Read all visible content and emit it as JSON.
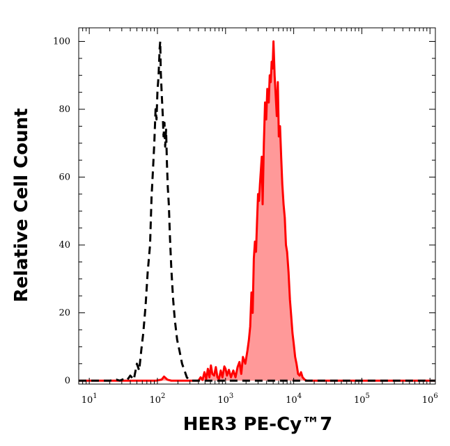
{
  "chart_data": {
    "type": "area",
    "title": "",
    "xlabel": "HER3 PE-Cy™7",
    "ylabel": "Relative Cell Count",
    "xscale": "log",
    "xlim": [
      7,
      1200000.0
    ],
    "ylim": [
      -1,
      104
    ],
    "grid": false,
    "legend": "none",
    "x_tick_labels": [
      {
        "base": "10",
        "exp": "1",
        "value": 10
      },
      {
        "base": "10",
        "exp": "2",
        "value": 100
      },
      {
        "base": "10",
        "exp": "3",
        "value": 1000
      },
      {
        "base": "10",
        "exp": "4",
        "value": 10000
      },
      {
        "base": "10",
        "exp": "5",
        "value": 100000
      },
      {
        "base": "10",
        "exp": "6",
        "value": 1000000
      }
    ],
    "y_ticks": [
      0,
      20,
      40,
      60,
      80,
      100
    ],
    "y_tick_labels": [
      "0",
      "20",
      "40",
      "60",
      "80",
      "100"
    ],
    "series": [
      {
        "style": "dashed",
        "color": "#000000",
        "fill": "none",
        "points": [
          [
            7,
            0
          ],
          [
            20,
            0
          ],
          [
            25,
            0.3
          ],
          [
            28,
            0
          ],
          [
            33,
            0.6
          ],
          [
            36,
            0.2
          ],
          [
            40,
            1.5
          ],
          [
            45,
            0.3
          ],
          [
            50,
            5
          ],
          [
            54,
            3
          ],
          [
            58,
            9
          ],
          [
            62,
            14
          ],
          [
            67,
            22
          ],
          [
            72,
            32
          ],
          [
            78,
            40
          ],
          [
            82,
            54
          ],
          [
            86,
            62
          ],
          [
            90,
            70
          ],
          [
            94,
            80
          ],
          [
            97,
            77
          ],
          [
            100,
            85
          ],
          [
            104,
            90
          ],
          [
            108,
            98
          ],
          [
            110,
            100
          ],
          [
            112,
            91
          ],
          [
            116,
            84
          ],
          [
            120,
            78
          ],
          [
            123,
            72
          ],
          [
            127,
            76
          ],
          [
            130,
            69
          ],
          [
            134,
            74
          ],
          [
            138,
            64
          ],
          [
            142,
            57
          ],
          [
            147,
            52
          ],
          [
            153,
            42
          ],
          [
            160,
            33
          ],
          [
            170,
            24
          ],
          [
            180,
            18
          ],
          [
            195,
            12
          ],
          [
            210,
            9
          ],
          [
            230,
            5
          ],
          [
            250,
            3
          ],
          [
            270,
            1
          ],
          [
            290,
            0.3
          ],
          [
            320,
            0
          ],
          [
            1200000,
            0
          ]
        ]
      },
      {
        "style": "solid",
        "color": "#ff0000",
        "fill": "#ff9999",
        "points": [
          [
            7,
            0
          ],
          [
            95,
            0
          ],
          [
            115,
            0.3
          ],
          [
            125,
            1.2
          ],
          [
            140,
            0.3
          ],
          [
            160,
            0
          ],
          [
            400,
            0
          ],
          [
            430,
            1
          ],
          [
            460,
            0.2
          ],
          [
            490,
            2.5
          ],
          [
            520,
            0.5
          ],
          [
            550,
            3.5
          ],
          [
            580,
            1
          ],
          [
            610,
            4.5
          ],
          [
            640,
            2
          ],
          [
            680,
            1.5
          ],
          [
            720,
            4
          ],
          [
            760,
            1
          ],
          [
            800,
            0.5
          ],
          [
            850,
            3
          ],
          [
            900,
            1
          ],
          [
            960,
            4.2
          ],
          [
            1000,
            3.5
          ],
          [
            1050,
            1.5
          ],
          [
            1120,
            3.2
          ],
          [
            1200,
            1
          ],
          [
            1300,
            3
          ],
          [
            1400,
            1
          ],
          [
            1500,
            4
          ],
          [
            1600,
            5.5
          ],
          [
            1700,
            2
          ],
          [
            1800,
            7
          ],
          [
            1950,
            5
          ],
          [
            2100,
            9
          ],
          [
            2200,
            12
          ],
          [
            2300,
            16
          ],
          [
            2400,
            26
          ],
          [
            2500,
            20
          ],
          [
            2600,
            36
          ],
          [
            2700,
            41
          ],
          [
            2800,
            38
          ],
          [
            2900,
            47
          ],
          [
            3000,
            55
          ],
          [
            3100,
            53
          ],
          [
            3200,
            58
          ],
          [
            3400,
            66
          ],
          [
            3500,
            52
          ],
          [
            3650,
            70
          ],
          [
            3800,
            82
          ],
          [
            3950,
            77
          ],
          [
            4100,
            86
          ],
          [
            4300,
            82
          ],
          [
            4450,
            90
          ],
          [
            4600,
            88
          ],
          [
            4750,
            94
          ],
          [
            4900,
            92
          ],
          [
            5050,
            100
          ],
          [
            5250,
            90
          ],
          [
            5450,
            84
          ],
          [
            5650,
            78
          ],
          [
            5850,
            88
          ],
          [
            6050,
            72
          ],
          [
            6300,
            75
          ],
          [
            6550,
            66
          ],
          [
            6800,
            58
          ],
          [
            7100,
            52
          ],
          [
            7400,
            48
          ],
          [
            7700,
            40
          ],
          [
            8000,
            38
          ],
          [
            8400,
            32
          ],
          [
            8800,
            24
          ],
          [
            9200,
            19
          ],
          [
            9600,
            14
          ],
          [
            10000,
            11
          ],
          [
            10500,
            7
          ],
          [
            11000,
            5
          ],
          [
            11600,
            2
          ],
          [
            12200,
            1.5
          ],
          [
            12800,
            2.5
          ],
          [
            13500,
            1
          ],
          [
            14500,
            0.3
          ],
          [
            15500,
            0
          ],
          [
            1200000,
            0
          ]
        ]
      }
    ]
  }
}
